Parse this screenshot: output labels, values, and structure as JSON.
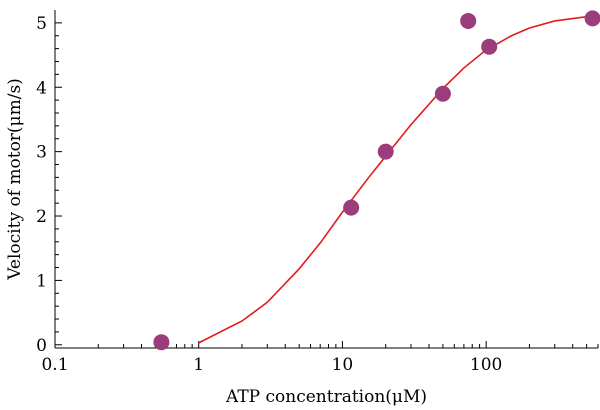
{
  "chart_data": {
    "type": "scatter",
    "title": "",
    "xlabel": "ATP concentration(μM)",
    "ylabel": "Velocity of  motor(μm/s)",
    "xscale": "log",
    "xlim": [
      0.1,
      600
    ],
    "ylim": [
      -0.05,
      5.2
    ],
    "x_ticks": [
      {
        "value": 0.1,
        "label": "0.1"
      },
      {
        "value": 1,
        "label": "1"
      },
      {
        "value": 10,
        "label": "10"
      },
      {
        "value": 100,
        "label": "100"
      }
    ],
    "y_ticks": [
      {
        "value": 0,
        "label": "0"
      },
      {
        "value": 1,
        "label": "1"
      },
      {
        "value": 2,
        "label": "2"
      },
      {
        "value": 3,
        "label": "3"
      },
      {
        "value": 4,
        "label": "4"
      },
      {
        "value": 5,
        "label": "5"
      }
    ],
    "grid": false,
    "series": [
      {
        "kind": "points",
        "color": "#9b3d7a",
        "points": [
          {
            "x": 0.55,
            "y": 0.04
          },
          {
            "x": 11.5,
            "y": 2.13
          },
          {
            "x": 20,
            "y": 3.0
          },
          {
            "x": 50,
            "y": 3.9
          },
          {
            "x": 75,
            "y": 5.03
          },
          {
            "x": 105,
            "y": 4.63
          },
          {
            "x": 550,
            "y": 5.07
          }
        ]
      },
      {
        "kind": "fit-line",
        "color": "#e41a1c",
        "points": [
          {
            "x": 1,
            "y": 0.03
          },
          {
            "x": 2,
            "y": 0.37
          },
          {
            "x": 3,
            "y": 0.66
          },
          {
            "x": 5,
            "y": 1.18
          },
          {
            "x": 7,
            "y": 1.58
          },
          {
            "x": 10,
            "y": 2.06
          },
          {
            "x": 15,
            "y": 2.58
          },
          {
            "x": 20,
            "y": 2.93
          },
          {
            "x": 30,
            "y": 3.42
          },
          {
            "x": 50,
            "y": 3.98
          },
          {
            "x": 70,
            "y": 4.3
          },
          {
            "x": 100,
            "y": 4.58
          },
          {
            "x": 150,
            "y": 4.8
          },
          {
            "x": 200,
            "y": 4.92
          },
          {
            "x": 300,
            "y": 5.03
          },
          {
            "x": 600,
            "y": 5.12
          }
        ]
      }
    ]
  }
}
